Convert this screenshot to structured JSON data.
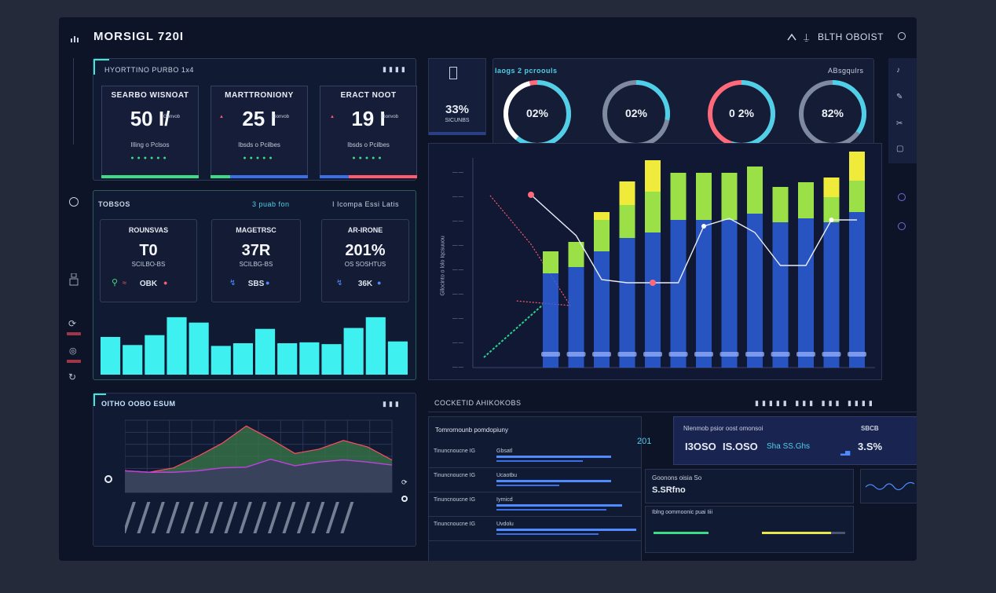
{
  "header": {
    "title": "MORSIGL 720I",
    "right_text": "BLTH OBOIST",
    "icons": [
      "chart-icon",
      "arrow-up-icon",
      "settings-icon"
    ]
  },
  "kpi_panel": {
    "title": "HYORTTINO PURBO 1x4",
    "cards": [
      {
        "title": "SEARBO WISNOAT",
        "value": "50 I/",
        "delta": "Gonvob",
        "sub": "Illing o Pclsos",
        "color": "#3ddc84"
      },
      {
        "title": "MARTTRONIONY",
        "value": "25 I",
        "delta": "Gonvob",
        "sub": "Ibsds o Pcilbes",
        "color": "#3a6fe6"
      },
      {
        "title": "ERACT NOOT",
        "value": "19 I",
        "delta": "Gonvob",
        "sub": "Ibsds o Pcilbes",
        "color": "#ff5a6e"
      }
    ]
  },
  "mid_panel": {
    "title": "TOBSOS",
    "tag_center": "3 puab fon",
    "tag_right": "I Icompa Essi Latis",
    "cards": [
      {
        "title": "ROUNSVAS",
        "value": "T0",
        "sub": "SCILBO-BS",
        "footer": "OBK"
      },
      {
        "title": "MAGETRSC",
        "value": "37R",
        "sub": "SCILBG-BS",
        "footer": "SBS"
      },
      {
        "title": "AR-IRONE",
        "value": "201%",
        "sub": "OS SOSHTUS",
        "footer": "36K"
      }
    ],
    "chart_data": {
      "type": "bar",
      "values": [
        42,
        33,
        44,
        64,
        58,
        32,
        35,
        51,
        35,
        36,
        34,
        52,
        64,
        37
      ]
    }
  },
  "side_stat": {
    "value": "33%",
    "label": "SICUNBS"
  },
  "rings": {
    "title": "Iaogs 2 pcroouls",
    "right_label": "ABsgqulrs",
    "items": [
      {
        "label": "02%",
        "pct": 0.7,
        "color": "#4fd0e8",
        "color2": "#ff6a7a"
      },
      {
        "label": "02%",
        "pct": 0.28,
        "color": "#4fd0e8",
        "color2": "#7f8aa0"
      },
      {
        "label": "0 2%",
        "pct": 0.55,
        "color": "#4fd0e8",
        "color2": "#ff6a7a"
      },
      {
        "label": "82%",
        "pct": 0.35,
        "color": "#4fd0e8",
        "color2": "#7f8aa0"
      }
    ]
  },
  "combo_chart": {
    "y_axis_label": "Gllocinto o lolo Iqcsuuou",
    "chart_data": {
      "type": "bar",
      "bars_blue": [
        120,
        128,
        148,
        165,
        172,
        188,
        188,
        188,
        196,
        185,
        190,
        185,
        198
      ],
      "bars_green": [
        28,
        32,
        40,
        42,
        52,
        60,
        60,
        60,
        60,
        45,
        46,
        32,
        40
      ],
      "bars_yellow": [
        0,
        0,
        10,
        30,
        40,
        0,
        0,
        0,
        0,
        0,
        0,
        25,
        70
      ],
      "line": [
        220,
        168,
        112,
        108,
        108,
        108,
        180,
        190,
        172,
        130,
        130,
        188,
        188
      ]
    }
  },
  "area_panel": {
    "title": "OITHO OOBO ESUM",
    "chart_data": {
      "type": "area",
      "green": [
        0.3,
        0.28,
        0.34,
        0.5,
        0.68,
        0.92,
        0.74,
        0.54,
        0.6,
        0.72,
        0.63,
        0.45
      ],
      "purple": [
        0.3,
        0.28,
        0.28,
        0.3,
        0.34,
        0.35,
        0.46,
        0.37,
        0.42,
        0.45,
        0.42,
        0.38
      ]
    }
  },
  "bottom_right": {
    "title": "COCKETID AHIKOKOBS",
    "list_title": "Tomrornounb pomdopiuny",
    "rows": [
      {
        "label": "Tinuncnoucne IG",
        "tag": "Gbsatl"
      },
      {
        "label": "Tinuncnoucne IG",
        "tag": "Ucaotbu"
      },
      {
        "label": "Tinuncnoucne IG",
        "tag": "Iyrnicd"
      },
      {
        "label": "Tinuncnoucne IG",
        "tag": "Uvdolu"
      }
    ],
    "mid_value": "201",
    "stat_title": "Nlenmob psior oost omonsoi",
    "stat_tag": "SBCB",
    "stat_values": [
      "I3OSO",
      "IS.OSO",
      "Sha SS.Ghs",
      "3.S%"
    ],
    "card2_title": "Goonons oisia So",
    "card2_value": "S.SRfno",
    "card3_title": "Iblng  oommoonic puai  Iiii"
  }
}
